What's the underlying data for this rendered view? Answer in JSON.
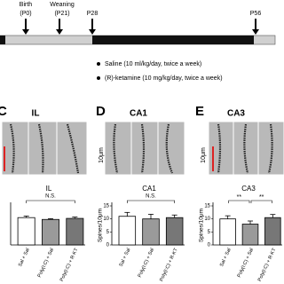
{
  "timeline": {
    "birth": "Birth",
    "birth_day": "(P0)",
    "weaning": "Weaning",
    "weaning_day": "(P21)",
    "start": "P28",
    "end": "P56"
  },
  "legend": [
    "Saline (10 ml/kg/day, twice a week)",
    "(R)-ketamine (10 mg/kg/day, twice a week)"
  ],
  "panels": [
    {
      "letter": "C",
      "region": "IL"
    },
    {
      "letter": "D",
      "region": "CA1",
      "scale": "10μm"
    },
    {
      "letter": "E",
      "region": "CA3",
      "scale": "10μm"
    }
  ],
  "chart_data": [
    {
      "type": "bar",
      "title": "IL",
      "categories": [
        "Sal + Sal",
        "Poly(I:C) + Sal",
        "Poly(I:C) + R-KT"
      ],
      "values": [
        10.5,
        9.8,
        10.2
      ],
      "errors": [
        0.6,
        0.3,
        0.5
      ],
      "colors": [
        "#ffffff",
        "#9a9a9a",
        "#777777"
      ],
      "ylim": [
        0,
        15
      ],
      "annotations": [
        "N.S."
      ]
    },
    {
      "type": "bar",
      "title": "CA1",
      "y_label": "Spines/10μm",
      "categories": [
        "Sal + Sal",
        "Poly(I:C) + Sal",
        "Poly(I:C) + R-KT"
      ],
      "values": [
        11,
        10,
        10.5
      ],
      "errors": [
        1.5,
        1.8,
        1.0
      ],
      "colors": [
        "#ffffff",
        "#9a9a9a",
        "#777777"
      ],
      "ylim": [
        0,
        15
      ],
      "yticks": [
        0,
        5,
        10,
        15
      ],
      "annotations": [
        "N.S."
      ]
    },
    {
      "type": "bar",
      "title": "CA3",
      "y_label": "Spines/10μm",
      "categories": [
        "Sal + Sal",
        "Poly(I:C) + Sal",
        "Poly(I:C) + R-KT"
      ],
      "values": [
        10,
        8,
        10.5
      ],
      "errors": [
        1.2,
        1.2,
        1.2
      ],
      "colors": [
        "#ffffff",
        "#9a9a9a",
        "#777777"
      ],
      "ylim": [
        0,
        15
      ],
      "yticks": [
        0,
        5,
        10,
        15
      ],
      "annotations": [
        "**",
        "**"
      ]
    }
  ]
}
